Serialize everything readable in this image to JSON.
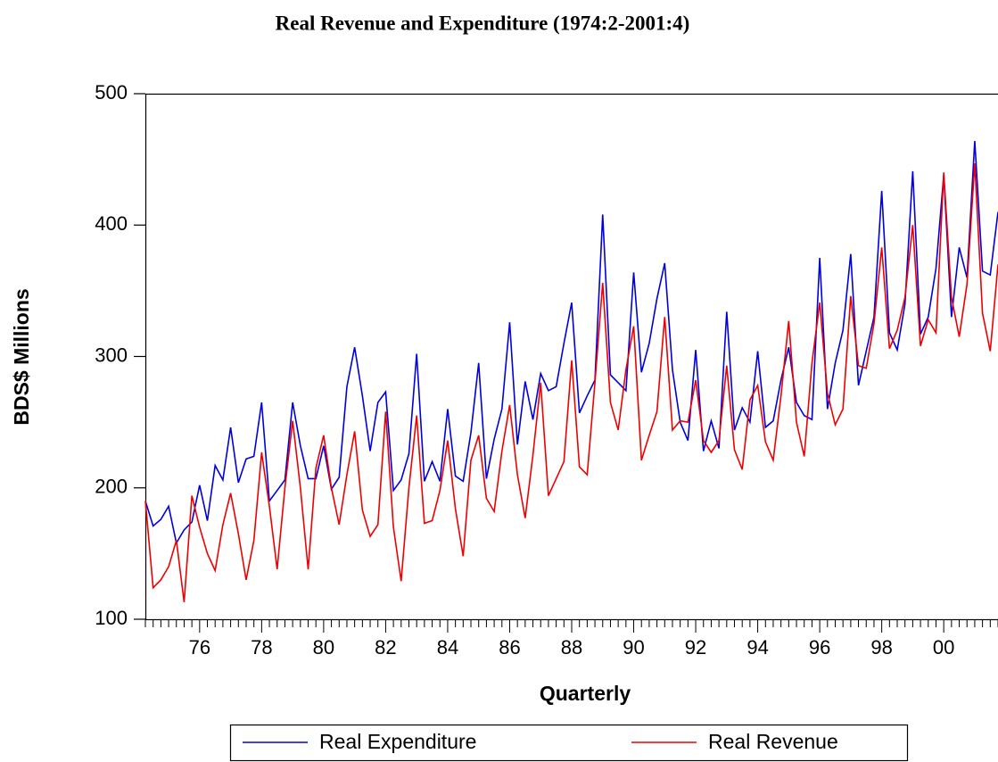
{
  "chart_data": {
    "type": "line",
    "title": "Real Revenue and Expenditure (1974:2-2001:4)",
    "x_label": "Quarterly",
    "y_label": "BDS$ Millions",
    "categories": [
      null,
      null,
      null,
      null,
      null,
      null,
      null,
      "76",
      null,
      null,
      null,
      null,
      null,
      null,
      null,
      "78",
      null,
      null,
      null,
      null,
      null,
      null,
      null,
      "80",
      null,
      null,
      null,
      null,
      null,
      null,
      null,
      "82",
      null,
      null,
      null,
      null,
      null,
      null,
      null,
      "84",
      null,
      null,
      null,
      null,
      null,
      null,
      null,
      "86",
      null,
      null,
      null,
      null,
      null,
      null,
      null,
      "88",
      null,
      null,
      null,
      null,
      null,
      null,
      null,
      "90",
      null,
      null,
      null,
      null,
      null,
      null,
      null,
      "92",
      null,
      null,
      null,
      null,
      null,
      null,
      null,
      "94",
      null,
      null,
      null,
      null,
      null,
      null,
      null,
      "96",
      null,
      null,
      null,
      null,
      null,
      null,
      null,
      "98",
      null,
      null,
      null,
      null,
      null,
      null,
      null,
      "00",
      null,
      null,
      null,
      null,
      null,
      null,
      null
    ],
    "series": [
      {
        "name": "Real Expenditure",
        "color": "#0000dd",
        "values": [
          190,
          171,
          176,
          186,
          158,
          168,
          174,
          202,
          175,
          217,
          206,
          246,
          204,
          222,
          224,
          265,
          190,
          198,
          206,
          265,
          232,
          207,
          207,
          232,
          199,
          208,
          277,
          307,
          270,
          228,
          265,
          273,
          198,
          206,
          226,
          302,
          205,
          220,
          205,
          260,
          209,
          205,
          242,
          295,
          207,
          237,
          260,
          326,
          233,
          281,
          252,
          287,
          274,
          277,
          310,
          341,
          257,
          270,
          282,
          408,
          286,
          280,
          274,
          364,
          288,
          310,
          344,
          371,
          290,
          250,
          236,
          305,
          228,
          251,
          230,
          334,
          244,
          261,
          250,
          304,
          246,
          251,
          282,
          307,
          265,
          255,
          252,
          375,
          260,
          295,
          320,
          378,
          278,
          304,
          330,
          426,
          318,
          305,
          340,
          441,
          317,
          330,
          367,
          438,
          330,
          383,
          360,
          464,
          365,
          362,
          410
        ]
      },
      {
        "name": "Real Revenue",
        "color": "#ee0000",
        "values": [
          190,
          124,
          130,
          140,
          160,
          113,
          194,
          170,
          150,
          137,
          172,
          196,
          165,
          130,
          160,
          227,
          186,
          138,
          200,
          251,
          200,
          138,
          215,
          240,
          200,
          172,
          210,
          243,
          183,
          163,
          172,
          258,
          170,
          129,
          200,
          255,
          173,
          175,
          198,
          236,
          184,
          148,
          221,
          240,
          192,
          182,
          228,
          263,
          210,
          177,
          225,
          280,
          194,
          207,
          220,
          297,
          216,
          210,
          280,
          356,
          265,
          244,
          290,
          323,
          221,
          240,
          258,
          330,
          244,
          251,
          250,
          282,
          236,
          227,
          236,
          293,
          229,
          214,
          267,
          278,
          235,
          221,
          270,
          327,
          250,
          224,
          295,
          341,
          272,
          248,
          260,
          346,
          293,
          291,
          325,
          383,
          306,
          320,
          345,
          400,
          308,
          328,
          318,
          440,
          345,
          315,
          355,
          447,
          333,
          304,
          370
        ]
      }
    ],
    "ylim": [
      100,
      500
    ],
    "yticks": [
      100,
      200,
      300,
      400,
      500
    ],
    "grid": false,
    "legend": "bottom"
  }
}
